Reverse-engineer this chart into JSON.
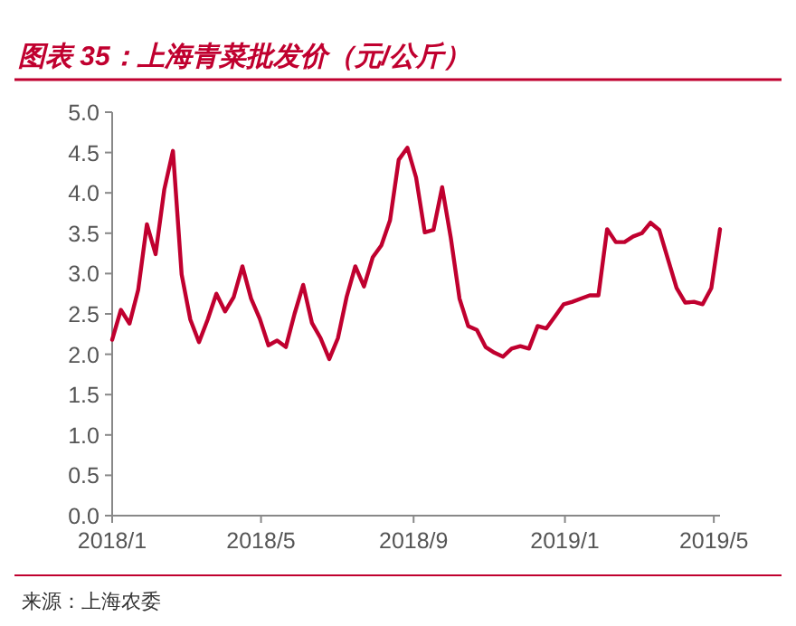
{
  "chart_data": {
    "type": "line",
    "title": "图表 35：上海青菜批发价（元/公斤）",
    "annotations": [
      "来源：上海农委"
    ],
    "x": [
      "2018-01-01",
      "2018-01-08",
      "2018-01-15",
      "2018-01-22",
      "2018-01-29",
      "2018-02-05",
      "2018-02-12",
      "2018-02-19",
      "2018-02-26",
      "2018-03-05",
      "2018-03-12",
      "2018-03-19",
      "2018-03-26",
      "2018-04-02",
      "2018-04-09",
      "2018-04-16",
      "2018-04-23",
      "2018-04-30",
      "2018-05-07",
      "2018-05-14",
      "2018-05-21",
      "2018-05-28",
      "2018-06-04",
      "2018-06-11",
      "2018-06-18",
      "2018-06-25",
      "2018-07-02",
      "2018-07-09",
      "2018-07-16",
      "2018-07-23",
      "2018-07-30",
      "2018-08-06",
      "2018-08-13",
      "2018-08-20",
      "2018-08-27",
      "2018-09-03",
      "2018-09-10",
      "2018-09-17",
      "2018-09-24",
      "2018-10-01",
      "2018-10-08",
      "2018-10-15",
      "2018-10-22",
      "2018-10-29",
      "2018-11-05",
      "2018-11-12",
      "2018-11-19",
      "2018-11-26",
      "2018-12-03",
      "2018-12-10",
      "2018-12-17",
      "2018-12-24",
      "2018-12-31",
      "2019-01-07",
      "2019-01-14",
      "2019-01-21",
      "2019-01-28",
      "2019-02-04",
      "2019-02-11",
      "2019-02-18",
      "2019-02-25",
      "2019-03-04",
      "2019-03-11",
      "2019-03-18",
      "2019-03-25",
      "2019-04-01",
      "2019-04-08",
      "2019-04-15",
      "2019-04-22",
      "2019-04-29",
      "2019-05-06"
    ],
    "series": [
      {
        "color": "#c0002f",
        "values": [
          2.18,
          2.55,
          2.38,
          2.8,
          3.61,
          3.24,
          4.04,
          4.52,
          2.99,
          2.43,
          2.15,
          2.43,
          2.75,
          2.53,
          2.71,
          3.09,
          2.69,
          2.44,
          2.11,
          2.17,
          2.09,
          2.5,
          2.86,
          2.39,
          2.2,
          1.94,
          2.2,
          2.71,
          3.09,
          2.84,
          3.2,
          3.35,
          3.66,
          4.41,
          4.56,
          4.19,
          3.51,
          3.54,
          4.07,
          3.44,
          2.69,
          2.35,
          2.3,
          2.09,
          2.02,
          1.97,
          2.07,
          2.1,
          2.07,
          2.35,
          2.32,
          2.47,
          2.62,
          2.65,
          2.69,
          2.73,
          2.73,
          3.55,
          3.39,
          3.39,
          3.46,
          3.5,
          3.63,
          3.54,
          3.18,
          2.82,
          2.64,
          2.65,
          2.62,
          2.82,
          3.55
        ]
      }
    ],
    "xlim": [
      "2018-01-01",
      "2019-05-06"
    ],
    "xticks": [
      {
        "value": "2018-01-01",
        "label": "2018/1"
      },
      {
        "value": "2018-05-01",
        "label": "2018/5"
      },
      {
        "value": "2018-09-01",
        "label": "2018/9"
      },
      {
        "value": "2019-01-01",
        "label": "2019/1"
      },
      {
        "value": "2019-05-01",
        "label": "2019/5"
      }
    ],
    "ylim": [
      0,
      5
    ],
    "yticks": [
      {
        "value": 0,
        "label": "0.0"
      },
      {
        "value": 0.5,
        "label": "0.5"
      },
      {
        "value": 1,
        "label": "1.0"
      },
      {
        "value": 1.5,
        "label": "1.5"
      },
      {
        "value": 2,
        "label": "2.0"
      },
      {
        "value": 2.5,
        "label": "2.5"
      },
      {
        "value": 3,
        "label": "3.0"
      },
      {
        "value": 3.5,
        "label": "3.5"
      },
      {
        "value": 4,
        "label": "4.0"
      },
      {
        "value": 4.5,
        "label": "4.5"
      },
      {
        "value": 5,
        "label": "5.0"
      }
    ],
    "grid": false,
    "marker": "none",
    "line_style": "solid"
  }
}
